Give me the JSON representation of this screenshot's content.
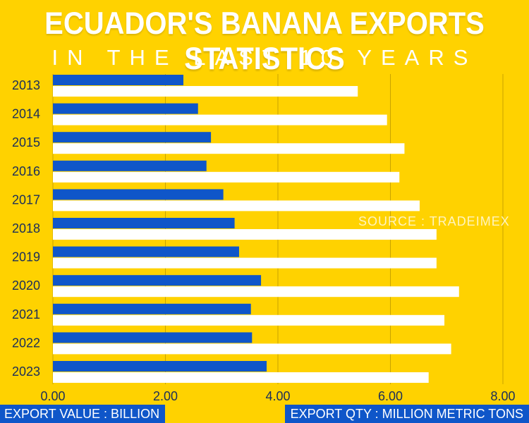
{
  "header": {
    "title": "ECUADOR'S BANANA EXPORTS STATISTICS",
    "subtitle": "IN THE LAST 10 YEARS"
  },
  "source_note": "SOURCE : TRADEIMEX",
  "footer": {
    "left_label": "EXPORT VALUE : BILLION",
    "right_label": "EXPORT QTY : MILLION METRIC TONS"
  },
  "colors": {
    "background": "#FFD200",
    "value_bar": "#0F56C9",
    "qty_bar": "#FFFFFF",
    "gridline": "#C9A400"
  },
  "chart_data": {
    "type": "bar",
    "orientation": "horizontal",
    "categories": [
      "2013",
      "2014",
      "2015",
      "2016",
      "2017",
      "2018",
      "2019",
      "2020",
      "2021",
      "2022",
      "2023"
    ],
    "series": [
      {
        "name": "EXPORT VALUE : BILLION",
        "values": [
          2.32,
          2.58,
          2.81,
          2.73,
          3.03,
          3.23,
          3.31,
          3.7,
          3.52,
          3.54,
          3.8
        ]
      },
      {
        "name": "EXPORT QTY : MILLION METRIC TONS",
        "values": [
          5.42,
          5.94,
          6.25,
          6.16,
          6.52,
          6.82,
          6.82,
          7.22,
          6.96,
          7.08,
          6.68
        ]
      }
    ],
    "xlim": [
      0,
      8
    ],
    "xticks": [
      "0.00",
      "2.00",
      "4.00",
      "6.00",
      "8.00"
    ],
    "grid": true
  }
}
